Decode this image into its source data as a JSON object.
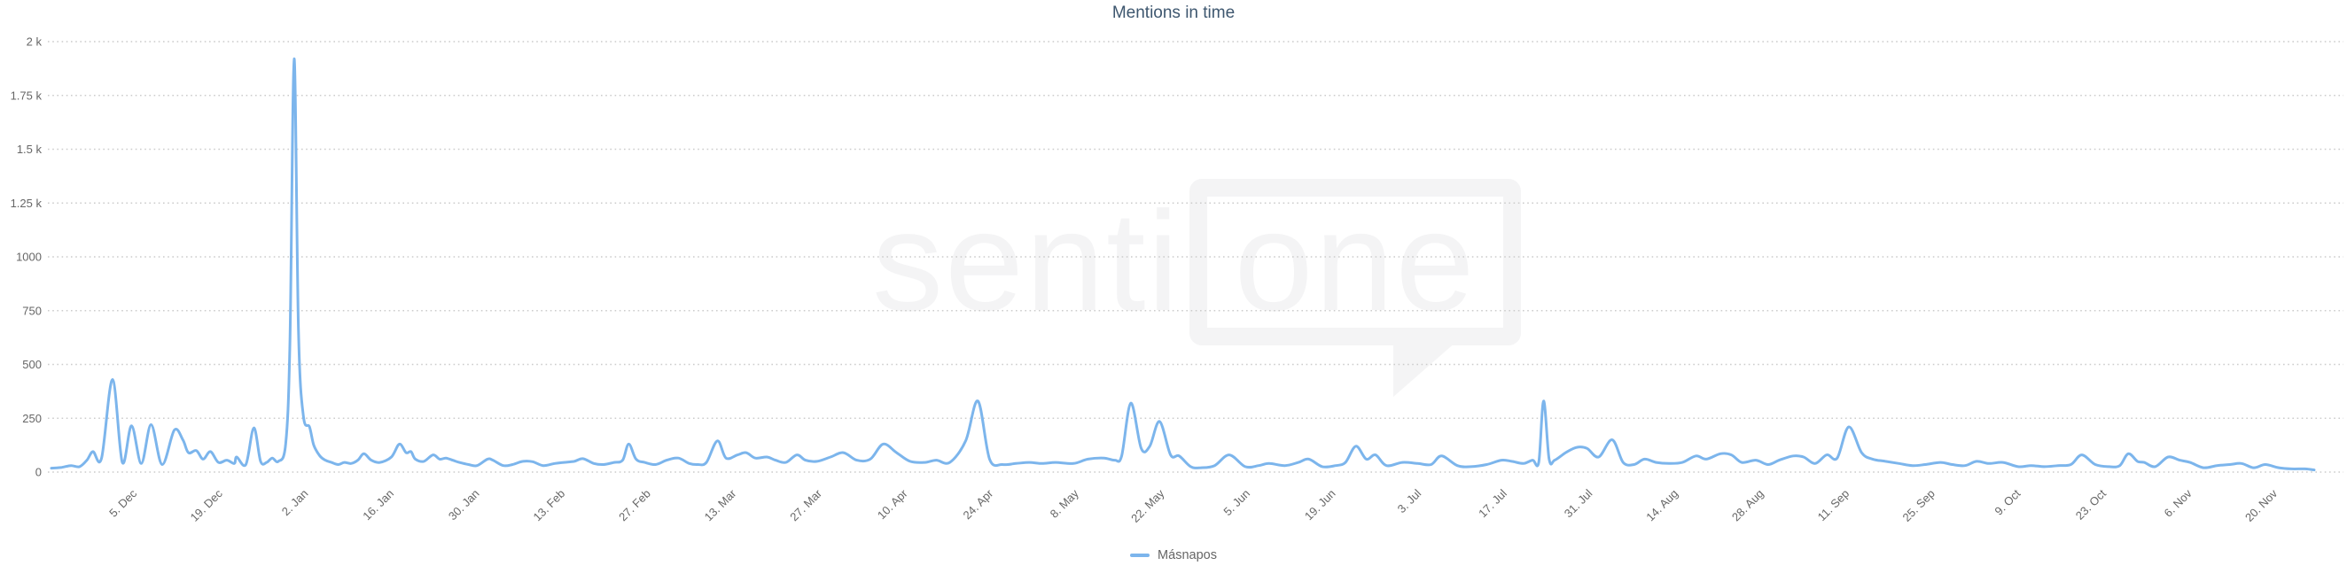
{
  "title": "Mentions in time",
  "watermark": {
    "prefix": "senti",
    "bubble_text": "one"
  },
  "legend": {
    "series_label": "Másnapos"
  },
  "colors": {
    "series_line": "#7cb5ec",
    "title_text": "#3e576f",
    "axis_label": "#666666",
    "gridline": "#cccccc",
    "legend_text": "#666666",
    "watermark": "#f4f4f5",
    "background": "#ffffff"
  },
  "chart_data": {
    "type": "line",
    "title": "Mentions in time",
    "xlabel": "",
    "ylabel": "",
    "grid": "dotted horizontal",
    "legend_position": "bottom-center",
    "ylim": [
      0,
      2000
    ],
    "y_ticks": [
      {
        "label": "0",
        "value": 0
      },
      {
        "label": "250",
        "value": 250
      },
      {
        "label": "500",
        "value": 500
      },
      {
        "label": "750",
        "value": 750
      },
      {
        "label": "1000",
        "value": 1000
      },
      {
        "label": "1.25 k",
        "value": 1250
      },
      {
        "label": "1.5 k",
        "value": 1500
      },
      {
        "label": "1.75 k",
        "value": 1750
      },
      {
        "label": "2 k",
        "value": 2000
      }
    ],
    "x_axis": {
      "unit": "day",
      "range_days": [
        0,
        370
      ],
      "first_tick_day": 13.5,
      "tick_interval_days": 14,
      "label_rotation_deg": -45
    },
    "x_ticks": [
      "5. Dec",
      "19. Dec",
      "2. Jan",
      "16. Jan",
      "30. Jan",
      "13. Feb",
      "27. Feb",
      "13. Mar",
      "27. Mar",
      "10. Apr",
      "24. Apr",
      "8. May",
      "22. May",
      "5. Jun",
      "19. Jun",
      "3. Jul",
      "17. Jul",
      "31. Jul",
      "14. Aug",
      "28. Aug",
      "11. Sep",
      "25. Sep",
      "9. Oct",
      "23. Oct",
      "6. Nov",
      "20. Nov"
    ],
    "series": [
      {
        "name": "Másnapos",
        "color": "#7cb5ec",
        "points": [
          [
            0,
            18
          ],
          [
            1.7,
            22
          ],
          [
            3.2,
            30
          ],
          [
            4.6,
            25
          ],
          [
            5.8,
            55
          ],
          [
            6.8,
            95
          ],
          [
            8.2,
            65
          ],
          [
            10,
            430
          ],
          [
            11.6,
            45
          ],
          [
            13.1,
            215
          ],
          [
            14.7,
            40
          ],
          [
            16.3,
            220
          ],
          [
            18.1,
            35
          ],
          [
            20.1,
            195
          ],
          [
            21.5,
            150
          ],
          [
            22.4,
            90
          ],
          [
            23.7,
            100
          ],
          [
            24.8,
            60
          ],
          [
            26,
            95
          ],
          [
            27.3,
            45
          ],
          [
            28.7,
            55
          ],
          [
            29.9,
            40
          ],
          [
            30.3,
            70
          ],
          [
            31.8,
            35
          ],
          [
            33.1,
            205
          ],
          [
            34.2,
            50
          ],
          [
            35.2,
            45
          ],
          [
            36.1,
            65
          ],
          [
            37.1,
            50
          ],
          [
            38.3,
            130
          ],
          [
            39,
            600
          ],
          [
            39.7,
            1920
          ],
          [
            40.4,
            650
          ],
          [
            41.2,
            260
          ],
          [
            42.2,
            210
          ],
          [
            42.9,
            125
          ],
          [
            43.9,
            75
          ],
          [
            44.8,
            55
          ],
          [
            45.8,
            45
          ],
          [
            46.9,
            35
          ],
          [
            47.9,
            45
          ],
          [
            49,
            40
          ],
          [
            50.1,
            55
          ],
          [
            51.1,
            85
          ],
          [
            52.3,
            55
          ],
          [
            53.7,
            45
          ],
          [
            55.6,
            70
          ],
          [
            56.9,
            130
          ],
          [
            58,
            90
          ],
          [
            58.8,
            95
          ],
          [
            59.5,
            60
          ],
          [
            60.9,
            50
          ],
          [
            62.4,
            80
          ],
          [
            63.5,
            60
          ],
          [
            64.5,
            65
          ],
          [
            65.6,
            55
          ],
          [
            66.7,
            45
          ],
          [
            68.2,
            35
          ],
          [
            69.6,
            30
          ],
          [
            71.3,
            60
          ],
          [
            72.2,
            55
          ],
          [
            73.9,
            30
          ],
          [
            75.4,
            35
          ],
          [
            77.1,
            50
          ],
          [
            78.7,
            48
          ],
          [
            80.4,
            30
          ],
          [
            82.3,
            40
          ],
          [
            83.8,
            45
          ],
          [
            85.5,
            50
          ],
          [
            86.9,
            62
          ],
          [
            88.7,
            40
          ],
          [
            90.3,
            35
          ],
          [
            92,
            45
          ],
          [
            93.4,
            55
          ],
          [
            94.4,
            130
          ],
          [
            95.6,
            60
          ],
          [
            97,
            45
          ],
          [
            98.8,
            35
          ],
          [
            100.6,
            55
          ],
          [
            102.5,
            65
          ],
          [
            104.3,
            40
          ],
          [
            105.7,
            35
          ],
          [
            107.1,
            45
          ],
          [
            108.9,
            145
          ],
          [
            110.3,
            65
          ],
          [
            112.2,
            80
          ],
          [
            113.6,
            90
          ],
          [
            115.1,
            65
          ],
          [
            117,
            70
          ],
          [
            118.4,
            55
          ],
          [
            120.1,
            45
          ],
          [
            121.9,
            80
          ],
          [
            123.3,
            55
          ],
          [
            125.2,
            50
          ],
          [
            127.4,
            70
          ],
          [
            129.5,
            90
          ],
          [
            131.7,
            55
          ],
          [
            133.9,
            60
          ],
          [
            136,
            130
          ],
          [
            138.2,
            90
          ],
          [
            140.4,
            50
          ],
          [
            142.8,
            45
          ],
          [
            144.7,
            55
          ],
          [
            146.9,
            45
          ],
          [
            149.5,
            145
          ],
          [
            151.5,
            330
          ],
          [
            153.4,
            60
          ],
          [
            155.5,
            35
          ],
          [
            157.7,
            40
          ],
          [
            159.9,
            45
          ],
          [
            162,
            40
          ],
          [
            164.2,
            45
          ],
          [
            167.1,
            40
          ],
          [
            169.5,
            60
          ],
          [
            172.1,
            65
          ],
          [
            173.9,
            55
          ],
          [
            175,
            75
          ],
          [
            176.5,
            320
          ],
          [
            178.2,
            110
          ],
          [
            179.6,
            120
          ],
          [
            181.2,
            235
          ],
          [
            183,
            80
          ],
          [
            184.4,
            75
          ],
          [
            186.3,
            25
          ],
          [
            188,
            20
          ],
          [
            190.2,
            30
          ],
          [
            192.6,
            80
          ],
          [
            195.2,
            25
          ],
          [
            197.4,
            30
          ],
          [
            199.1,
            40
          ],
          [
            201.7,
            30
          ],
          [
            203.9,
            45
          ],
          [
            205.6,
            60
          ],
          [
            207.8,
            25
          ],
          [
            210,
            30
          ],
          [
            211.6,
            45
          ],
          [
            213.3,
            120
          ],
          [
            215,
            60
          ],
          [
            216.5,
            80
          ],
          [
            218.3,
            30
          ],
          [
            220.9,
            45
          ],
          [
            223.4,
            40
          ],
          [
            225.6,
            35
          ],
          [
            227.3,
            75
          ],
          [
            229.9,
            30
          ],
          [
            232.1,
            25
          ],
          [
            234.7,
            35
          ],
          [
            237.1,
            55
          ],
          [
            238.8,
            50
          ],
          [
            240.7,
            40
          ],
          [
            242.2,
            55
          ],
          [
            243.2,
            45
          ],
          [
            244,
            330
          ],
          [
            244.9,
            60
          ],
          [
            245.8,
            55
          ],
          [
            247.6,
            90
          ],
          [
            249.4,
            115
          ],
          [
            251.1,
            110
          ],
          [
            253,
            70
          ],
          [
            255.2,
            150
          ],
          [
            257,
            45
          ],
          [
            258.8,
            35
          ],
          [
            260.5,
            60
          ],
          [
            262.4,
            45
          ],
          [
            264.5,
            40
          ],
          [
            266.7,
            45
          ],
          [
            268.9,
            75
          ],
          [
            270.6,
            60
          ],
          [
            272.9,
            85
          ],
          [
            274.7,
            80
          ],
          [
            276.4,
            45
          ],
          [
            278.7,
            55
          ],
          [
            280.7,
            35
          ],
          [
            282.5,
            55
          ],
          [
            284.8,
            75
          ],
          [
            286.5,
            70
          ],
          [
            288.4,
            40
          ],
          [
            290.3,
            80
          ],
          [
            292,
            65
          ],
          [
            293.9,
            210
          ],
          [
            296,
            90
          ],
          [
            297.8,
            60
          ],
          [
            299.9,
            50
          ],
          [
            302.1,
            40
          ],
          [
            304.3,
            30
          ],
          [
            306.4,
            35
          ],
          [
            308.9,
            45
          ],
          [
            310.8,
            35
          ],
          [
            312.9,
            30
          ],
          [
            314.8,
            50
          ],
          [
            316.8,
            40
          ],
          [
            319.1,
            45
          ],
          [
            321.6,
            25
          ],
          [
            323.7,
            30
          ],
          [
            325.9,
            25
          ],
          [
            328.1,
            30
          ],
          [
            330.2,
            35
          ],
          [
            332,
            80
          ],
          [
            334.2,
            35
          ],
          [
            336.5,
            25
          ],
          [
            338.2,
            30
          ],
          [
            339.6,
            85
          ],
          [
            341.1,
            50
          ],
          [
            342.2,
            45
          ],
          [
            344,
            25
          ],
          [
            346.1,
            70
          ],
          [
            348,
            55
          ],
          [
            349.7,
            45
          ],
          [
            351.9,
            20
          ],
          [
            354.1,
            30
          ],
          [
            356.2,
            35
          ],
          [
            358.1,
            40
          ],
          [
            360.1,
            20
          ],
          [
            362,
            35
          ],
          [
            364.2,
            20
          ],
          [
            366.3,
            15
          ],
          [
            368.5,
            15
          ],
          [
            370,
            10
          ]
        ]
      }
    ]
  }
}
